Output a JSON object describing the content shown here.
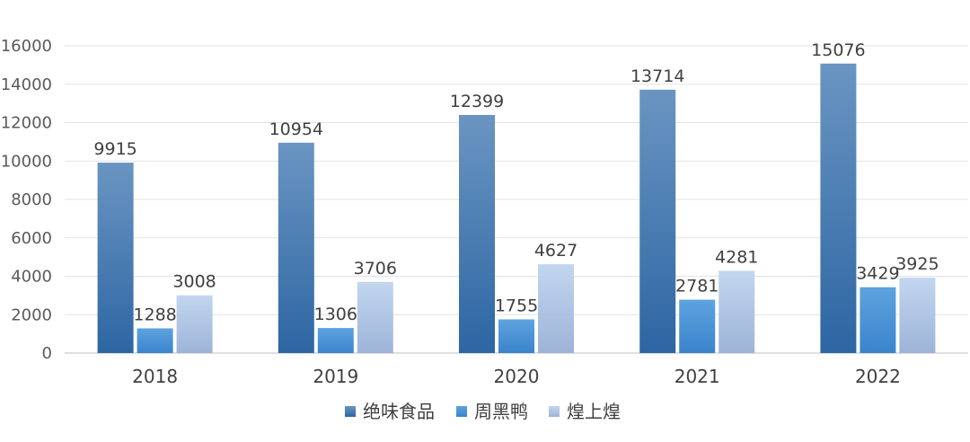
{
  "chart_data": {
    "type": "bar",
    "categories": [
      "2018",
      "2019",
      "2020",
      "2021",
      "2022"
    ],
    "series": [
      {
        "name": "绝味食品",
        "values": [
          9915,
          10954,
          12399,
          13714,
          15076
        ],
        "color": "#3e72a8"
      },
      {
        "name": "周黑鸭",
        "values": [
          1288,
          1306,
          1755,
          2781,
          3429
        ],
        "color": "#4a8fd2"
      },
      {
        "name": "煌上煌",
        "values": [
          3008,
          3706,
          4627,
          4281,
          3925
        ],
        "color": "#b4c9e6"
      }
    ],
    "ylim": [
      0,
      16000
    ],
    "yticks": [
      0,
      2000,
      4000,
      6000,
      8000,
      10000,
      12000,
      14000,
      16000
    ],
    "grid": true,
    "legend_position": "bottom",
    "data_labels": true
  }
}
